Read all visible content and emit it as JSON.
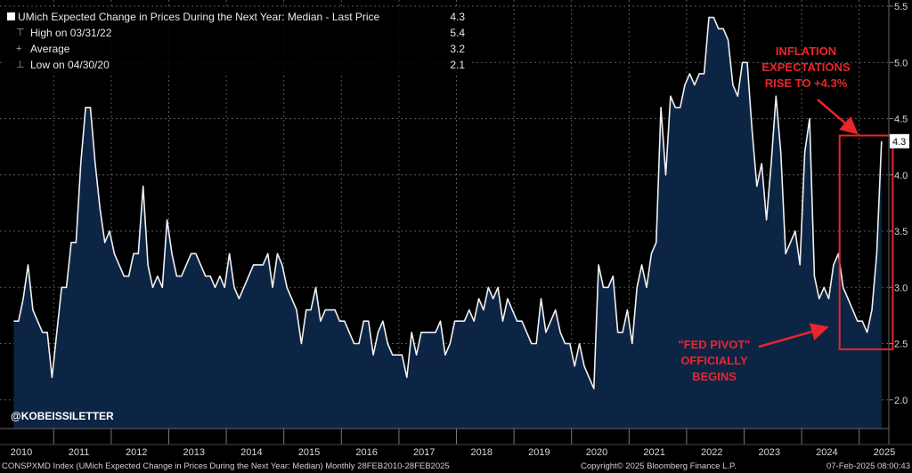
{
  "legend": {
    "title": "UMich Expected Change in Prices During the Next Year: Median - Last Price",
    "last_value": "4.3",
    "high_label": "High on 03/31/22",
    "high_value": "5.4",
    "average_label": "Average",
    "average_value": "3.2",
    "low_label": "Low on 04/30/20",
    "low_value": "2.1"
  },
  "annotations": {
    "inflation_text": [
      "INFLATION",
      "EXPECTATIONS",
      "RISE TO +4.3%"
    ],
    "fed_text": [
      "\"FED PIVOT\"",
      "OFFICIALLY",
      "BEGINS"
    ],
    "watermark": "@KOBEISSILETTER",
    "last_price_tag": "4.3",
    "annotation_color": "#e8262b"
  },
  "footer": {
    "left": "CONSPXMD Index (UMich Expected Change in Prices During the Next Year: Median)  Monthly 28FEB2010-28FEB2025",
    "copyright": "Copyright© 2025 Bloomberg Finance L.P.",
    "timestamp": "07-Feb-2025 08:00:43"
  },
  "chart_data": {
    "type": "area",
    "title": "UMich Expected Change in Prices During the Next Year: Median",
    "x_tick_labels": [
      "2010",
      "2011",
      "2012",
      "2013",
      "2014",
      "2015",
      "2016",
      "2017",
      "2018",
      "2019",
      "2020",
      "2021",
      "2022",
      "2023",
      "2024",
      "2025"
    ],
    "y_ticks": [
      2.0,
      2.5,
      3.0,
      3.5,
      4.0,
      4.5,
      5.0,
      5.5
    ],
    "ylim": [
      1.85,
      5.6
    ],
    "x_start": "2010-02",
    "frequency": "monthly",
    "series": [
      {
        "name": "CONSPXMD Index",
        "values": [
          2.7,
          2.7,
          2.9,
          3.2,
          2.8,
          2.7,
          2.6,
          2.6,
          2.2,
          2.6,
          3.0,
          3.0,
          3.4,
          3.4,
          4.1,
          4.6,
          4.6,
          4.1,
          3.7,
          3.4,
          3.5,
          3.3,
          3.2,
          3.1,
          3.1,
          3.3,
          3.3,
          3.9,
          3.2,
          3.0,
          3.1,
          3.0,
          3.6,
          3.3,
          3.1,
          3.1,
          3.2,
          3.3,
          3.3,
          3.2,
          3.1,
          3.1,
          3.0,
          3.1,
          3.0,
          3.3,
          3.0,
          2.9,
          3.0,
          3.1,
          3.2,
          3.2,
          3.2,
          3.3,
          3.0,
          3.3,
          3.2,
          3.0,
          2.9,
          2.8,
          2.5,
          2.8,
          2.8,
          3.0,
          2.7,
          2.8,
          2.8,
          2.8,
          2.7,
          2.7,
          2.6,
          2.5,
          2.5,
          2.7,
          2.7,
          2.4,
          2.6,
          2.7,
          2.5,
          2.4,
          2.4,
          2.4,
          2.2,
          2.6,
          2.4,
          2.6,
          2.6,
          2.6,
          2.6,
          2.7,
          2.4,
          2.5,
          2.7,
          2.7,
          2.7,
          2.8,
          2.7,
          2.9,
          2.8,
          3.0,
          2.9,
          3.0,
          2.7,
          2.9,
          2.8,
          2.7,
          2.7,
          2.6,
          2.5,
          2.5,
          2.9,
          2.6,
          2.7,
          2.8,
          2.6,
          2.5,
          2.5,
          2.3,
          2.5,
          2.3,
          2.2,
          2.1,
          3.2,
          3.0,
          3.0,
          3.1,
          2.6,
          2.6,
          2.8,
          2.5,
          3.0,
          3.2,
          3.0,
          3.3,
          3.4,
          4.6,
          4.0,
          4.7,
          4.6,
          4.6,
          4.8,
          4.9,
          4.8,
          4.9,
          4.9,
          5.4,
          5.4,
          5.3,
          5.3,
          5.2,
          4.8,
          4.7,
          5.0,
          5.0,
          4.4,
          3.9,
          4.1,
          3.6,
          4.1,
          4.7,
          4.2,
          3.3,
          3.4,
          3.5,
          3.2,
          4.2,
          4.5,
          3.1,
          2.9,
          3.0,
          2.9,
          3.2,
          3.3,
          3.0,
          2.9,
          2.8,
          2.7,
          2.7,
          2.6,
          2.8,
          3.3,
          4.3
        ]
      }
    ],
    "highlight_region": {
      "x_from": "2024-07",
      "x_to": "2025-02",
      "y_from": 2.45,
      "y_to": 4.35
    }
  }
}
